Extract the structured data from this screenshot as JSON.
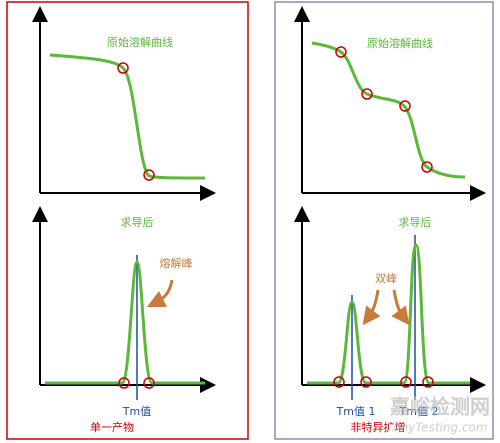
{
  "panels": [
    {
      "top_label": "原始溶解曲线",
      "bottom_label": "求导后",
      "peak_label": "熔解峰",
      "tm_labels": [
        "Tm值"
      ],
      "caption": "单一产物"
    },
    {
      "top_label": "原始溶解曲线",
      "bottom_label": "求导后",
      "peak_label": "双峰",
      "tm_labels": [
        "Tm值 1",
        "Tm值 2"
      ],
      "caption": "非特异扩增"
    }
  ],
  "watermark": {
    "name": "嘉峪检测网",
    "site": "AnyTesting.com"
  }
}
